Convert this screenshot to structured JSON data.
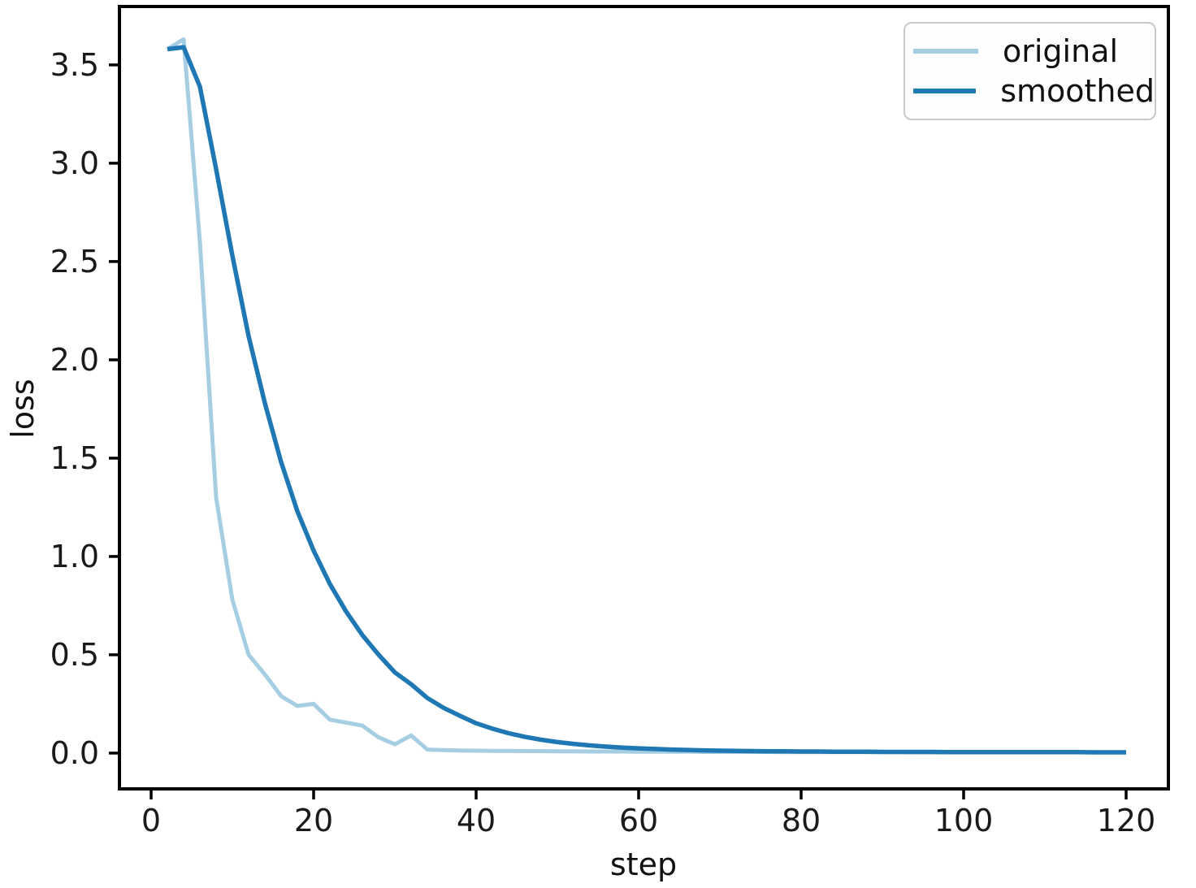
{
  "figure": {
    "background": "#ffffff",
    "frame_color": "#000000"
  },
  "chart_data": {
    "type": "line",
    "title": "",
    "xlabel": "step",
    "ylabel": "loss",
    "grid": false,
    "legend_position": "upper right",
    "xlim": [
      -3.9,
      125.2
    ],
    "ylim": [
      -0.182,
      3.797
    ],
    "xticks": [
      0,
      20,
      40,
      60,
      80,
      100,
      120
    ],
    "xtick_labels": [
      "0",
      "20",
      "40",
      "60",
      "80",
      "100",
      "120"
    ],
    "yticks": [
      0.0,
      0.5,
      1.0,
      1.5,
      2.0,
      2.5,
      3.0,
      3.5
    ],
    "ytick_labels": [
      "0.0",
      "0.5",
      "1.0",
      "1.5",
      "2.0",
      "2.5",
      "3.0",
      "3.5"
    ],
    "axis_color": "#000000",
    "tick_label_color": "#1a1a1a",
    "x": [
      2,
      4,
      6,
      8,
      10,
      12,
      14,
      16,
      18,
      20,
      22,
      24,
      26,
      28,
      30,
      32,
      34,
      36,
      38,
      40,
      42,
      44,
      46,
      48,
      50,
      52,
      54,
      56,
      58,
      60,
      62,
      64,
      66,
      68,
      70,
      72,
      74,
      76,
      78,
      80,
      82,
      84,
      86,
      88,
      90,
      92,
      94,
      96,
      98,
      100,
      102,
      104,
      106,
      108,
      110,
      112,
      114,
      116,
      118,
      120
    ],
    "series": [
      {
        "name": "original",
        "color": "#a6cee3",
        "line_width": 5,
        "values": [
          3.58,
          3.63,
          2.6,
          1.3,
          0.78,
          0.5,
          0.4,
          0.29,
          0.24,
          0.25,
          0.17,
          0.155,
          0.14,
          0.08,
          0.045,
          0.09,
          0.018,
          0.015,
          0.013,
          0.012,
          0.011,
          0.011,
          0.01,
          0.01,
          0.009,
          0.009,
          0.008,
          0.008,
          0.008,
          0.007,
          0.007,
          0.007,
          0.007,
          0.006,
          0.006,
          0.006,
          0.006,
          0.006,
          0.005,
          0.005,
          0.005,
          0.005,
          0.005,
          0.005,
          0.005,
          0.005,
          0.004,
          0.004,
          0.004,
          0.004,
          0.004,
          0.004,
          0.004,
          0.004,
          0.004,
          0.004,
          0.004,
          0.004,
          0.004,
          0.004
        ]
      },
      {
        "name": "smoothed",
        "color": "#1f78b4",
        "line_width": 5.5,
        "values": [
          3.58,
          3.59,
          3.39,
          2.97,
          2.53,
          2.12,
          1.78,
          1.48,
          1.23,
          1.03,
          0.86,
          0.72,
          0.6,
          0.5,
          0.41,
          0.35,
          0.28,
          0.23,
          0.19,
          0.152,
          0.124,
          0.101,
          0.083,
          0.068,
          0.056,
          0.047,
          0.039,
          0.033,
          0.028,
          0.024,
          0.021,
          0.018,
          0.016,
          0.014,
          0.012,
          0.011,
          0.01,
          0.009,
          0.009,
          0.008,
          0.008,
          0.007,
          0.007,
          0.007,
          0.006,
          0.006,
          0.006,
          0.006,
          0.005,
          0.005,
          0.005,
          0.005,
          0.005,
          0.005,
          0.005,
          0.005,
          0.005,
          0.004,
          0.004,
          0.004
        ]
      }
    ]
  }
}
